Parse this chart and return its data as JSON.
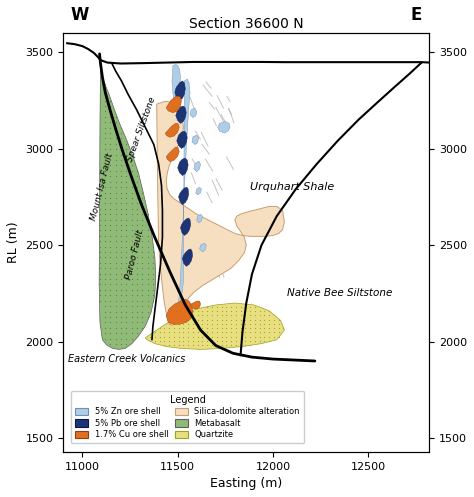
{
  "title": "Section 36600 N",
  "xlabel": "Easting (m)",
  "ylabel": "RL (m)",
  "xlim": [
    10900,
    12820
  ],
  "ylim": [
    1430,
    3600
  ],
  "xticks": [
    11000,
    11500,
    12000,
    12500
  ],
  "yticks": [
    1500,
    2000,
    2500,
    3000,
    3500
  ],
  "w_label": "W",
  "e_label": "E",
  "colors": {
    "zn_ore": "#b0cde8",
    "pb_ore": "#1e3575",
    "cu_ore": "#e07020",
    "silica_dolomite": "#f5dfc0",
    "metabasalt": "#8fba78",
    "quartzite": "#e8e080",
    "fault_line": "#000000"
  }
}
